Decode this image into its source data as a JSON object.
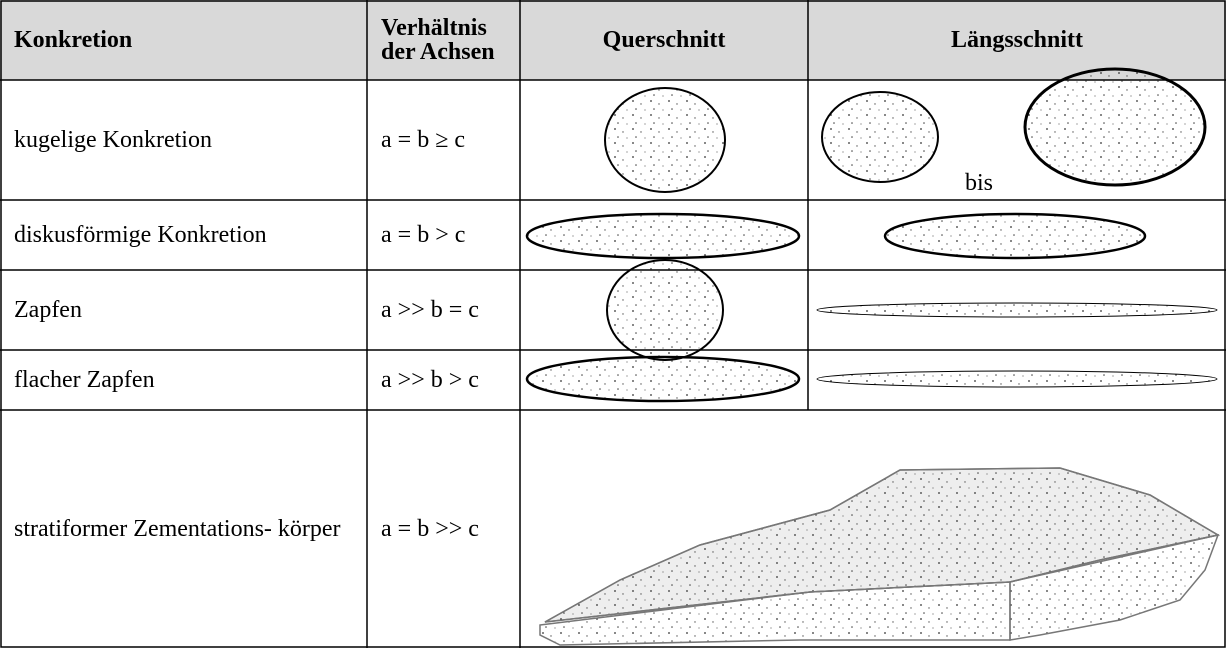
{
  "table": {
    "header": [
      "Konkretion",
      "Verhältnis der Achsen",
      "Querschnitt",
      "Längsschnitt"
    ],
    "rows": [
      {
        "name": "kugelige Konkretion",
        "ratio": "a = b ≥ c"
      },
      {
        "name": "diskusförmige Konkretion",
        "ratio": "a = b > c"
      },
      {
        "name": "Zapfen",
        "ratio": "a >> b = c"
      },
      {
        "name": "flacher Zapfen",
        "ratio": "a >> b > c"
      },
      {
        "name": "stratiformer Zementations- körper",
        "ratio": "a = b >> c"
      }
    ]
  },
  "figure_labels": {
    "range_word": "bis"
  }
}
